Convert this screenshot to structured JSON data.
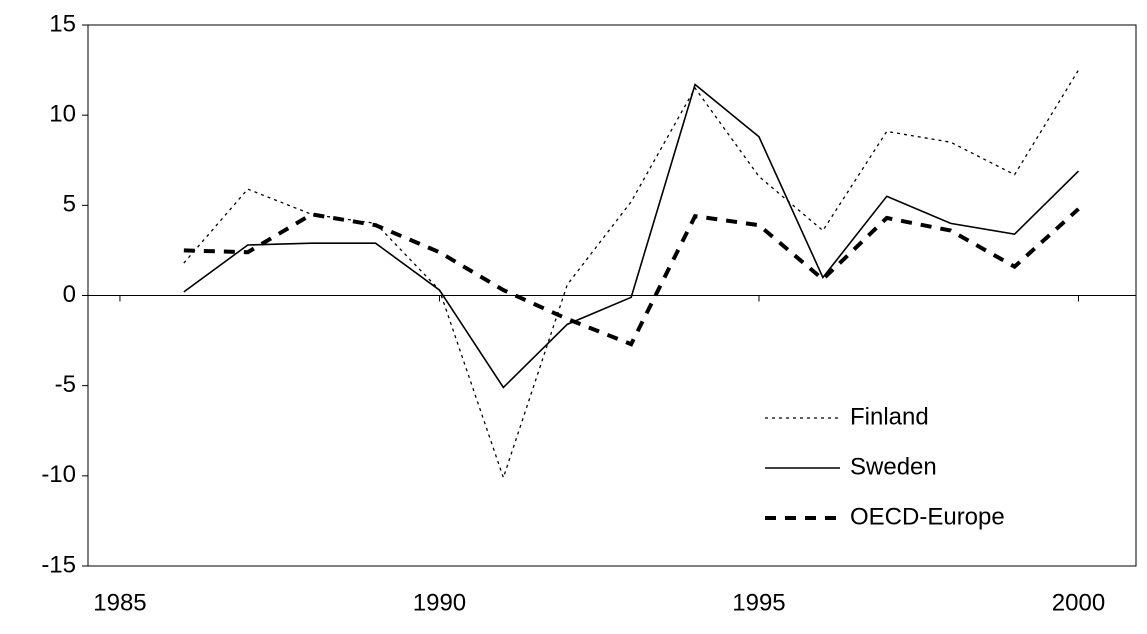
{
  "chart_data": {
    "type": "line",
    "x": [
      1986,
      1987,
      1988,
      1989,
      1990,
      1991,
      1992,
      1993,
      1994,
      1995,
      1996,
      1997,
      1998,
      1999,
      2000
    ],
    "series": [
      {
        "name": "Finland",
        "color": "#000000",
        "line_style": "dotted",
        "values": [
          1.8,
          5.9,
          4.5,
          4.0,
          0.3,
          -10.1,
          0.6,
          5.2,
          11.5,
          6.6,
          3.6,
          9.1,
          8.5,
          6.7,
          12.5
        ]
      },
      {
        "name": "Sweden",
        "color": "#000000",
        "line_style": "solid",
        "values": [
          0.2,
          2.8,
          2.9,
          2.9,
          0.3,
          -5.1,
          -1.6,
          -0.1,
          11.7,
          8.8,
          1.0,
          5.5,
          4.0,
          3.4,
          6.9
        ]
      },
      {
        "name": "OECD-Europe",
        "color": "#000000",
        "line_style": "dashed",
        "values": [
          2.5,
          2.4,
          4.5,
          3.9,
          2.4,
          0.3,
          -1.3,
          -2.7,
          4.4,
          3.9,
          0.9,
          4.3,
          3.6,
          1.6,
          4.8
        ]
      }
    ],
    "xlim": [
      1984.5,
      2000.9
    ],
    "xticks": [
      1985,
      1990,
      1995,
      2000
    ],
    "ylim": [
      -15,
      15
    ],
    "yticks": [
      -15,
      -10,
      -5,
      0,
      5,
      10,
      15
    ],
    "legend": "lower-right"
  }
}
